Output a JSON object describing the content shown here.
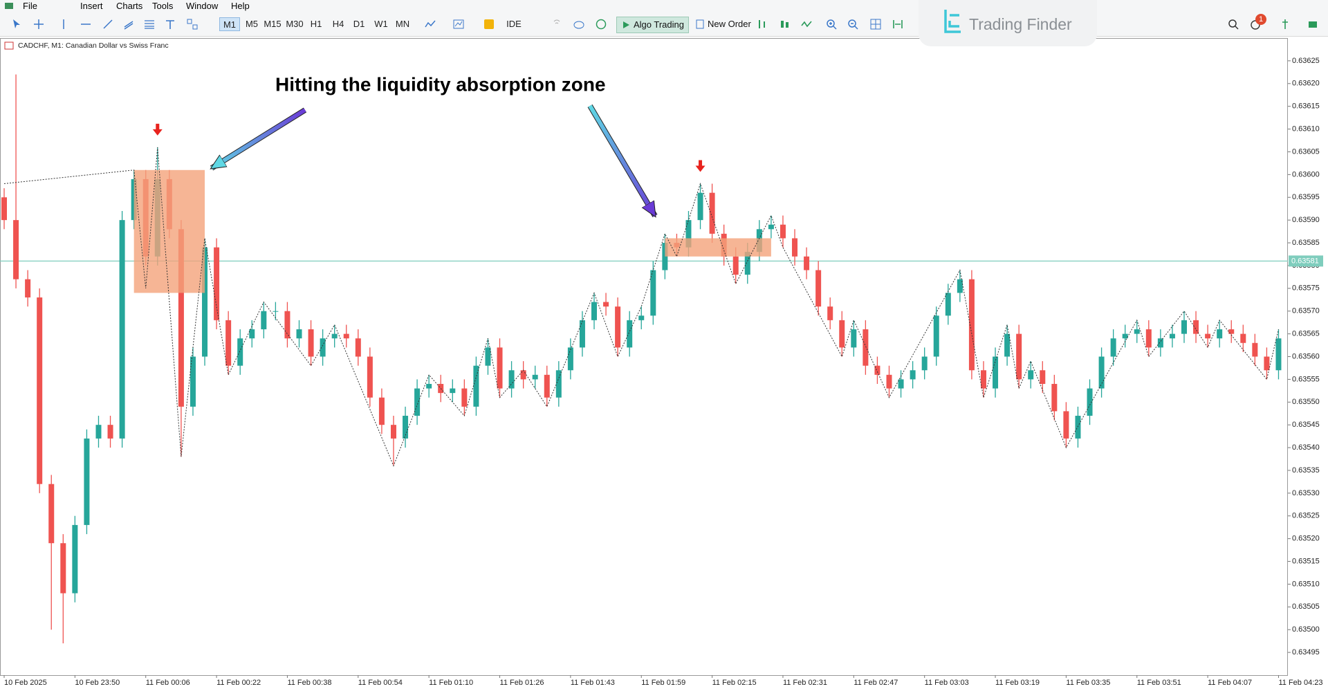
{
  "menu": [
    "File",
    "Insert",
    "Charts",
    "Tools",
    "Window",
    "Help"
  ],
  "toolbar": {
    "timeframes": [
      "M1",
      "M5",
      "M15",
      "M30",
      "H1",
      "H4",
      "D1",
      "W1",
      "MN"
    ],
    "ide": "IDE",
    "algo": "Algo Trading",
    "new_order": "New Order",
    "badge": "1"
  },
  "logo": "Trading Finder",
  "chart_header": "CADCHF, M1:  Canadian Dollar vs Swiss Franc",
  "chart_data": {
    "type": "candlestick",
    "annotation": "Hitting the liquidity absorption zone",
    "categories": [
      "10 Feb 2025",
      null,
      null,
      null,
      null,
      null,
      "10 Feb 23:50",
      null,
      null,
      null,
      null,
      null,
      "11 Feb 00:06",
      null,
      null,
      null,
      null,
      null,
      "11 Feb 00:22",
      null,
      null,
      null,
      null,
      null,
      "11 Feb 00:38",
      null,
      null,
      null,
      null,
      null,
      "11 Feb 00:54",
      null,
      null,
      null,
      null,
      null,
      "11 Feb 01:10",
      null,
      null,
      null,
      null,
      null,
      "11 Feb 01:26",
      null,
      null,
      null,
      null,
      null,
      "11 Feb 01:43",
      null,
      null,
      null,
      null,
      null,
      "11 Feb 01:59",
      null,
      null,
      null,
      null,
      null,
      "11 Feb 02:15",
      null,
      null,
      null,
      null,
      null,
      "11 Feb 02:31",
      null,
      null,
      null,
      null,
      null,
      "11 Feb 02:47",
      null,
      null,
      null,
      null,
      null,
      "11 Feb 03:03",
      null,
      null,
      null,
      null,
      null,
      "11 Feb 03:19",
      null,
      null,
      null,
      null,
      null,
      "11 Feb 03:35",
      null,
      null,
      null,
      null,
      null,
      "11 Feb 03:51",
      null,
      null,
      null,
      null,
      null,
      "11 Feb 04:07",
      null,
      null,
      null,
      null,
      null,
      "11 Feb 04:23"
    ],
    "open": [
      0.63595,
      0.6359,
      0.63577,
      0.63573,
      0.63532,
      0.63519,
      0.63508,
      0.63523,
      0.63542,
      0.63545,
      0.63542,
      0.6359,
      0.63599,
      0.63582,
      0.63599,
      0.63588,
      0.63549,
      0.6356,
      0.63584,
      0.63568,
      0.63558,
      0.63564,
      0.63566,
      0.6357,
      0.6357,
      0.63564,
      0.63566,
      0.6356,
      0.63564,
      0.63565,
      0.63564,
      0.6356,
      0.63551,
      0.63545,
      0.63542,
      0.63547,
      0.63553,
      0.63554,
      0.63552,
      0.63553,
      0.63549,
      0.63558,
      0.63562,
      0.63553,
      0.63557,
      0.63555,
      0.63556,
      0.63551,
      0.63557,
      0.63562,
      0.63568,
      0.63572,
      0.63571,
      0.63562,
      0.63568,
      0.63569,
      0.63579,
      0.63585,
      0.63584,
      0.6359,
      0.63596,
      0.63587,
      0.63582,
      0.63578,
      0.63583,
      0.63588,
      0.63589,
      0.63586,
      0.63582,
      0.63579,
      0.63571,
      0.63568,
      0.63562,
      0.63566,
      0.63558,
      0.63556,
      0.63553,
      0.63555,
      0.63557,
      0.6356,
      0.63569,
      0.63574,
      0.63577,
      0.63557,
      0.63553,
      0.6356,
      0.63565,
      0.63555,
      0.63557,
      0.63554,
      0.63548,
      0.63542,
      0.63547,
      0.63553,
      0.6356,
      0.63564,
      0.63565,
      0.63566,
      0.63562,
      0.63564,
      0.63565,
      0.63568,
      0.63565,
      0.63564,
      0.63566,
      0.63565,
      0.63563,
      0.6356,
      0.63557
    ],
    "high": [
      0.63597,
      0.63622,
      0.63579,
      0.63575,
      0.63534,
      0.63521,
      0.63525,
      0.63544,
      0.63547,
      0.63547,
      0.63592,
      0.63601,
      0.63601,
      0.63606,
      0.63601,
      0.6359,
      0.63562,
      0.63586,
      0.63586,
      0.6357,
      0.63566,
      0.63568,
      0.63572,
      0.63572,
      0.63572,
      0.63568,
      0.63568,
      0.63566,
      0.63567,
      0.63567,
      0.63566,
      0.63562,
      0.63553,
      0.63547,
      0.63549,
      0.63555,
      0.63556,
      0.63556,
      0.63555,
      0.63555,
      0.6356,
      0.63564,
      0.63564,
      0.63559,
      0.63559,
      0.63558,
      0.63558,
      0.63559,
      0.63564,
      0.6357,
      0.63574,
      0.63574,
      0.63573,
      0.6357,
      0.63571,
      0.63581,
      0.63587,
      0.63587,
      0.63592,
      0.63598,
      0.63598,
      0.63589,
      0.63584,
      0.63585,
      0.6359,
      0.63591,
      0.63591,
      0.63588,
      0.63584,
      0.63581,
      0.63573,
      0.6357,
      0.63568,
      0.63568,
      0.6356,
      0.63558,
      0.63557,
      0.63559,
      0.63562,
      0.63571,
      0.63576,
      0.63579,
      0.63579,
      0.63559,
      0.63562,
      0.63567,
      0.63567,
      0.63559,
      0.63559,
      0.63556,
      0.6355,
      0.63549,
      0.63555,
      0.63562,
      0.63566,
      0.63567,
      0.63568,
      0.63568,
      0.63566,
      0.63567,
      0.6357,
      0.6357,
      0.63567,
      0.63568,
      0.63568,
      0.63567,
      0.63565,
      0.63562,
      0.63566
    ],
    "low": [
      0.63588,
      0.63575,
      0.63571,
      0.6353,
      0.635,
      0.63497,
      0.63506,
      0.63521,
      0.6354,
      0.6354,
      0.6354,
      0.63588,
      0.6358,
      0.6358,
      0.63586,
      0.63538,
      0.63547,
      0.63558,
      0.63566,
      0.63556,
      0.63556,
      0.63562,
      0.63564,
      0.63568,
      0.63562,
      0.63562,
      0.63558,
      0.63558,
      0.63562,
      0.63562,
      0.63558,
      0.63549,
      0.63543,
      0.63536,
      0.6354,
      0.63545,
      0.63551,
      0.6355,
      0.6355,
      0.63547,
      0.63547,
      0.63556,
      0.63551,
      0.63551,
      0.63553,
      0.63553,
      0.63549,
      0.63549,
      0.63555,
      0.6356,
      0.63566,
      0.63569,
      0.6356,
      0.6356,
      0.63566,
      0.63567,
      0.63577,
      0.63582,
      0.63582,
      0.63588,
      0.63585,
      0.6358,
      0.63576,
      0.63576,
      0.63581,
      0.63586,
      0.63584,
      0.6358,
      0.63577,
      0.63569,
      0.63566,
      0.6356,
      0.6356,
      0.63556,
      0.63554,
      0.63551,
      0.63551,
      0.63553,
      0.63555,
      0.63558,
      0.63567,
      0.63572,
      0.63555,
      0.63551,
      0.63551,
      0.63558,
      0.63553,
      0.63553,
      0.63552,
      0.63546,
      0.6354,
      0.6354,
      0.63545,
      0.63551,
      0.63558,
      0.63562,
      0.63563,
      0.6356,
      0.6356,
      0.63562,
      0.63563,
      0.63563,
      0.63562,
      0.63562,
      0.63563,
      0.63561,
      0.63558,
      0.63555,
      0.63555
    ],
    "close": [
      0.6359,
      0.63577,
      0.63573,
      0.63532,
      0.63519,
      0.63508,
      0.63523,
      0.63542,
      0.63545,
      0.63542,
      0.6359,
      0.63599,
      0.63582,
      0.63599,
      0.63588,
      0.63549,
      0.6356,
      0.63584,
      0.63568,
      0.63558,
      0.63564,
      0.63566,
      0.6357,
      0.6357,
      0.63564,
      0.63566,
      0.6356,
      0.63564,
      0.63565,
      0.63564,
      0.6356,
      0.63551,
      0.63545,
      0.63542,
      0.63547,
      0.63553,
      0.63554,
      0.63552,
      0.63553,
      0.63549,
      0.63558,
      0.63562,
      0.63553,
      0.63557,
      0.63555,
      0.63556,
      0.63551,
      0.63557,
      0.63562,
      0.63568,
      0.63572,
      0.63571,
      0.63562,
      0.63568,
      0.63569,
      0.63579,
      0.63585,
      0.63584,
      0.6359,
      0.63596,
      0.63587,
      0.63582,
      0.63578,
      0.63583,
      0.63588,
      0.63589,
      0.63586,
      0.63582,
      0.63579,
      0.63571,
      0.63568,
      0.63562,
      0.63566,
      0.63558,
      0.63556,
      0.63553,
      0.63555,
      0.63557,
      0.6356,
      0.63569,
      0.63574,
      0.63577,
      0.63557,
      0.63553,
      0.6356,
      0.63565,
      0.63555,
      0.63557,
      0.63554,
      0.63548,
      0.63542,
      0.63547,
      0.63553,
      0.6356,
      0.63564,
      0.63565,
      0.63566,
      0.63562,
      0.63564,
      0.63565,
      0.63568,
      0.63565,
      0.63564,
      0.63566,
      0.63565,
      0.63563,
      0.6356,
      0.63557,
      0.63564
    ],
    "up_color": "#26a69a",
    "down_color": "#ef5350",
    "zigzag": {
      "color": "#333333",
      "x": [
        0,
        11,
        12,
        13,
        15,
        17,
        19,
        22,
        26,
        28,
        33,
        36,
        39,
        41,
        42,
        44,
        46,
        50,
        52,
        54,
        56,
        57,
        59,
        62,
        65,
        66,
        71,
        72,
        75,
        81,
        83,
        85,
        86,
        87,
        90,
        96,
        97,
        100,
        102,
        103,
        107,
        108
      ],
      "values": [
        0.63598,
        0.63601,
        0.63575,
        0.63606,
        0.63538,
        0.63586,
        0.63556,
        0.63572,
        0.63558,
        0.63567,
        0.63536,
        0.63556,
        0.63547,
        0.63564,
        0.63551,
        0.63557,
        0.63549,
        0.63574,
        0.6356,
        0.63571,
        0.63587,
        0.63582,
        0.63598,
        0.63576,
        0.63591,
        0.63584,
        0.6356,
        0.63568,
        0.63551,
        0.63579,
        0.63551,
        0.63567,
        0.63553,
        0.63559,
        0.6354,
        0.63568,
        0.6356,
        0.6357,
        0.63562,
        0.63568,
        0.63555,
        0.63566
      ]
    },
    "zones": [
      {
        "start": 11,
        "end": 17,
        "top": 0.63601,
        "bottom": 0.63574
      },
      {
        "start": 56,
        "end": 65,
        "top": 0.63586,
        "bottom": 0.63582
      }
    ],
    "zone_color": "#f4a27a",
    "signals": [
      13,
      59
    ],
    "signal_color": "#e8231e",
    "current_price": 0.63581,
    "current_color": "#7fcdbd",
    "ylim": [
      0.6349,
      0.6363
    ],
    "yticks": [
      0.63495,
      {
        "value": 0.635,
        "label": "0.63500"
      },
      0.63505,
      {
        "value": 0.6351,
        "label": "0.63510"
      },
      0.63515,
      {
        "value": 0.6352,
        "label": "0.63520"
      },
      0.63525,
      {
        "value": 0.6353,
        "label": "0.63530"
      },
      0.63535,
      {
        "value": 0.6354,
        "label": "0.63540"
      },
      0.63545,
      {
        "value": 0.6355,
        "label": "0.63550"
      },
      0.63555,
      {
        "value": 0.6356,
        "label": "0.63560"
      },
      0.63565,
      {
        "value": 0.6357,
        "label": "0.63570"
      },
      0.63575,
      {
        "value": 0.6358,
        "label": "0.63580"
      },
      0.63585,
      {
        "value": 0.6359,
        "label": "0.63590"
      },
      0.63595,
      {
        "value": 0.636,
        "label": "0.63600"
      },
      0.63605,
      {
        "value": 0.6361,
        "label": "0.63610"
      },
      0.63615,
      {
        "value": 0.6362,
        "label": "0.63620"
      },
      0.63625
    ],
    "grid": false
  }
}
